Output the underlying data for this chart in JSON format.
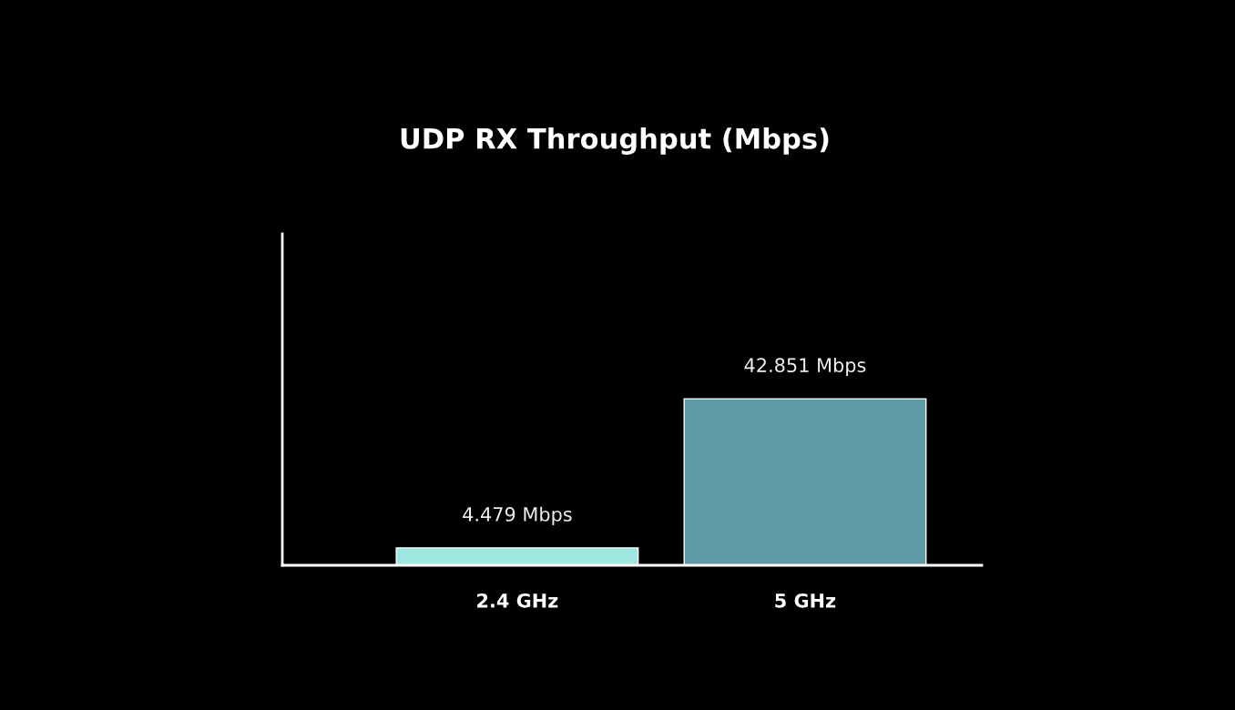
{
  "chart_data": {
    "type": "bar",
    "title": "UDP RX Throughput (Mbps)",
    "categories": [
      "2.4 GHz",
      "5 GHz"
    ],
    "values": [
      4.479,
      42.851
    ],
    "colors": [
      "#9ee7e0",
      "#5e9ba6"
    ],
    "value_labels": [
      "4.479 Mbps",
      "42.851 Mbps"
    ],
    "tick_labels": "x"
  }
}
